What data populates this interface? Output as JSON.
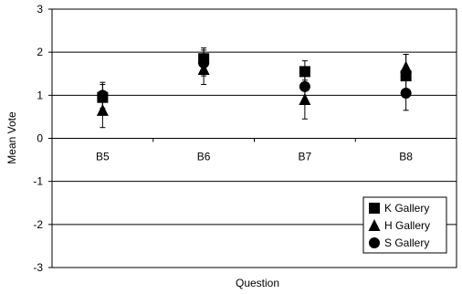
{
  "chart_data": {
    "type": "scatter",
    "xlabel": "Question",
    "ylabel": "Mean Vote",
    "ylim": [
      -3,
      3
    ],
    "yticks": [
      -3,
      -2,
      -1,
      0,
      1,
      2,
      3
    ],
    "ytick_labels": [
      "-3",
      "-2",
      "-1",
      "0",
      "1",
      "2",
      "3"
    ],
    "categories": [
      "B5",
      "B6",
      "B7",
      "B8"
    ],
    "grid": "horizontal",
    "legend_position": "bottom-right",
    "series": [
      {
        "name": "K Gallery",
        "marker": "square",
        "values": [
          0.95,
          1.85,
          1.55,
          1.45
        ],
        "error": [
          0.3,
          0.25,
          0.25,
          0.5
        ]
      },
      {
        "name": "H Gallery",
        "marker": "triangle",
        "values": [
          0.65,
          1.6,
          0.9,
          1.65
        ],
        "error": [
          0.4,
          0.35,
          0.45,
          0.3
        ]
      },
      {
        "name": "S Gallery",
        "marker": "circle",
        "values": [
          1.0,
          1.75,
          1.2,
          1.05
        ],
        "error": [
          0.3,
          0.3,
          0.3,
          0.4
        ]
      }
    ]
  }
}
